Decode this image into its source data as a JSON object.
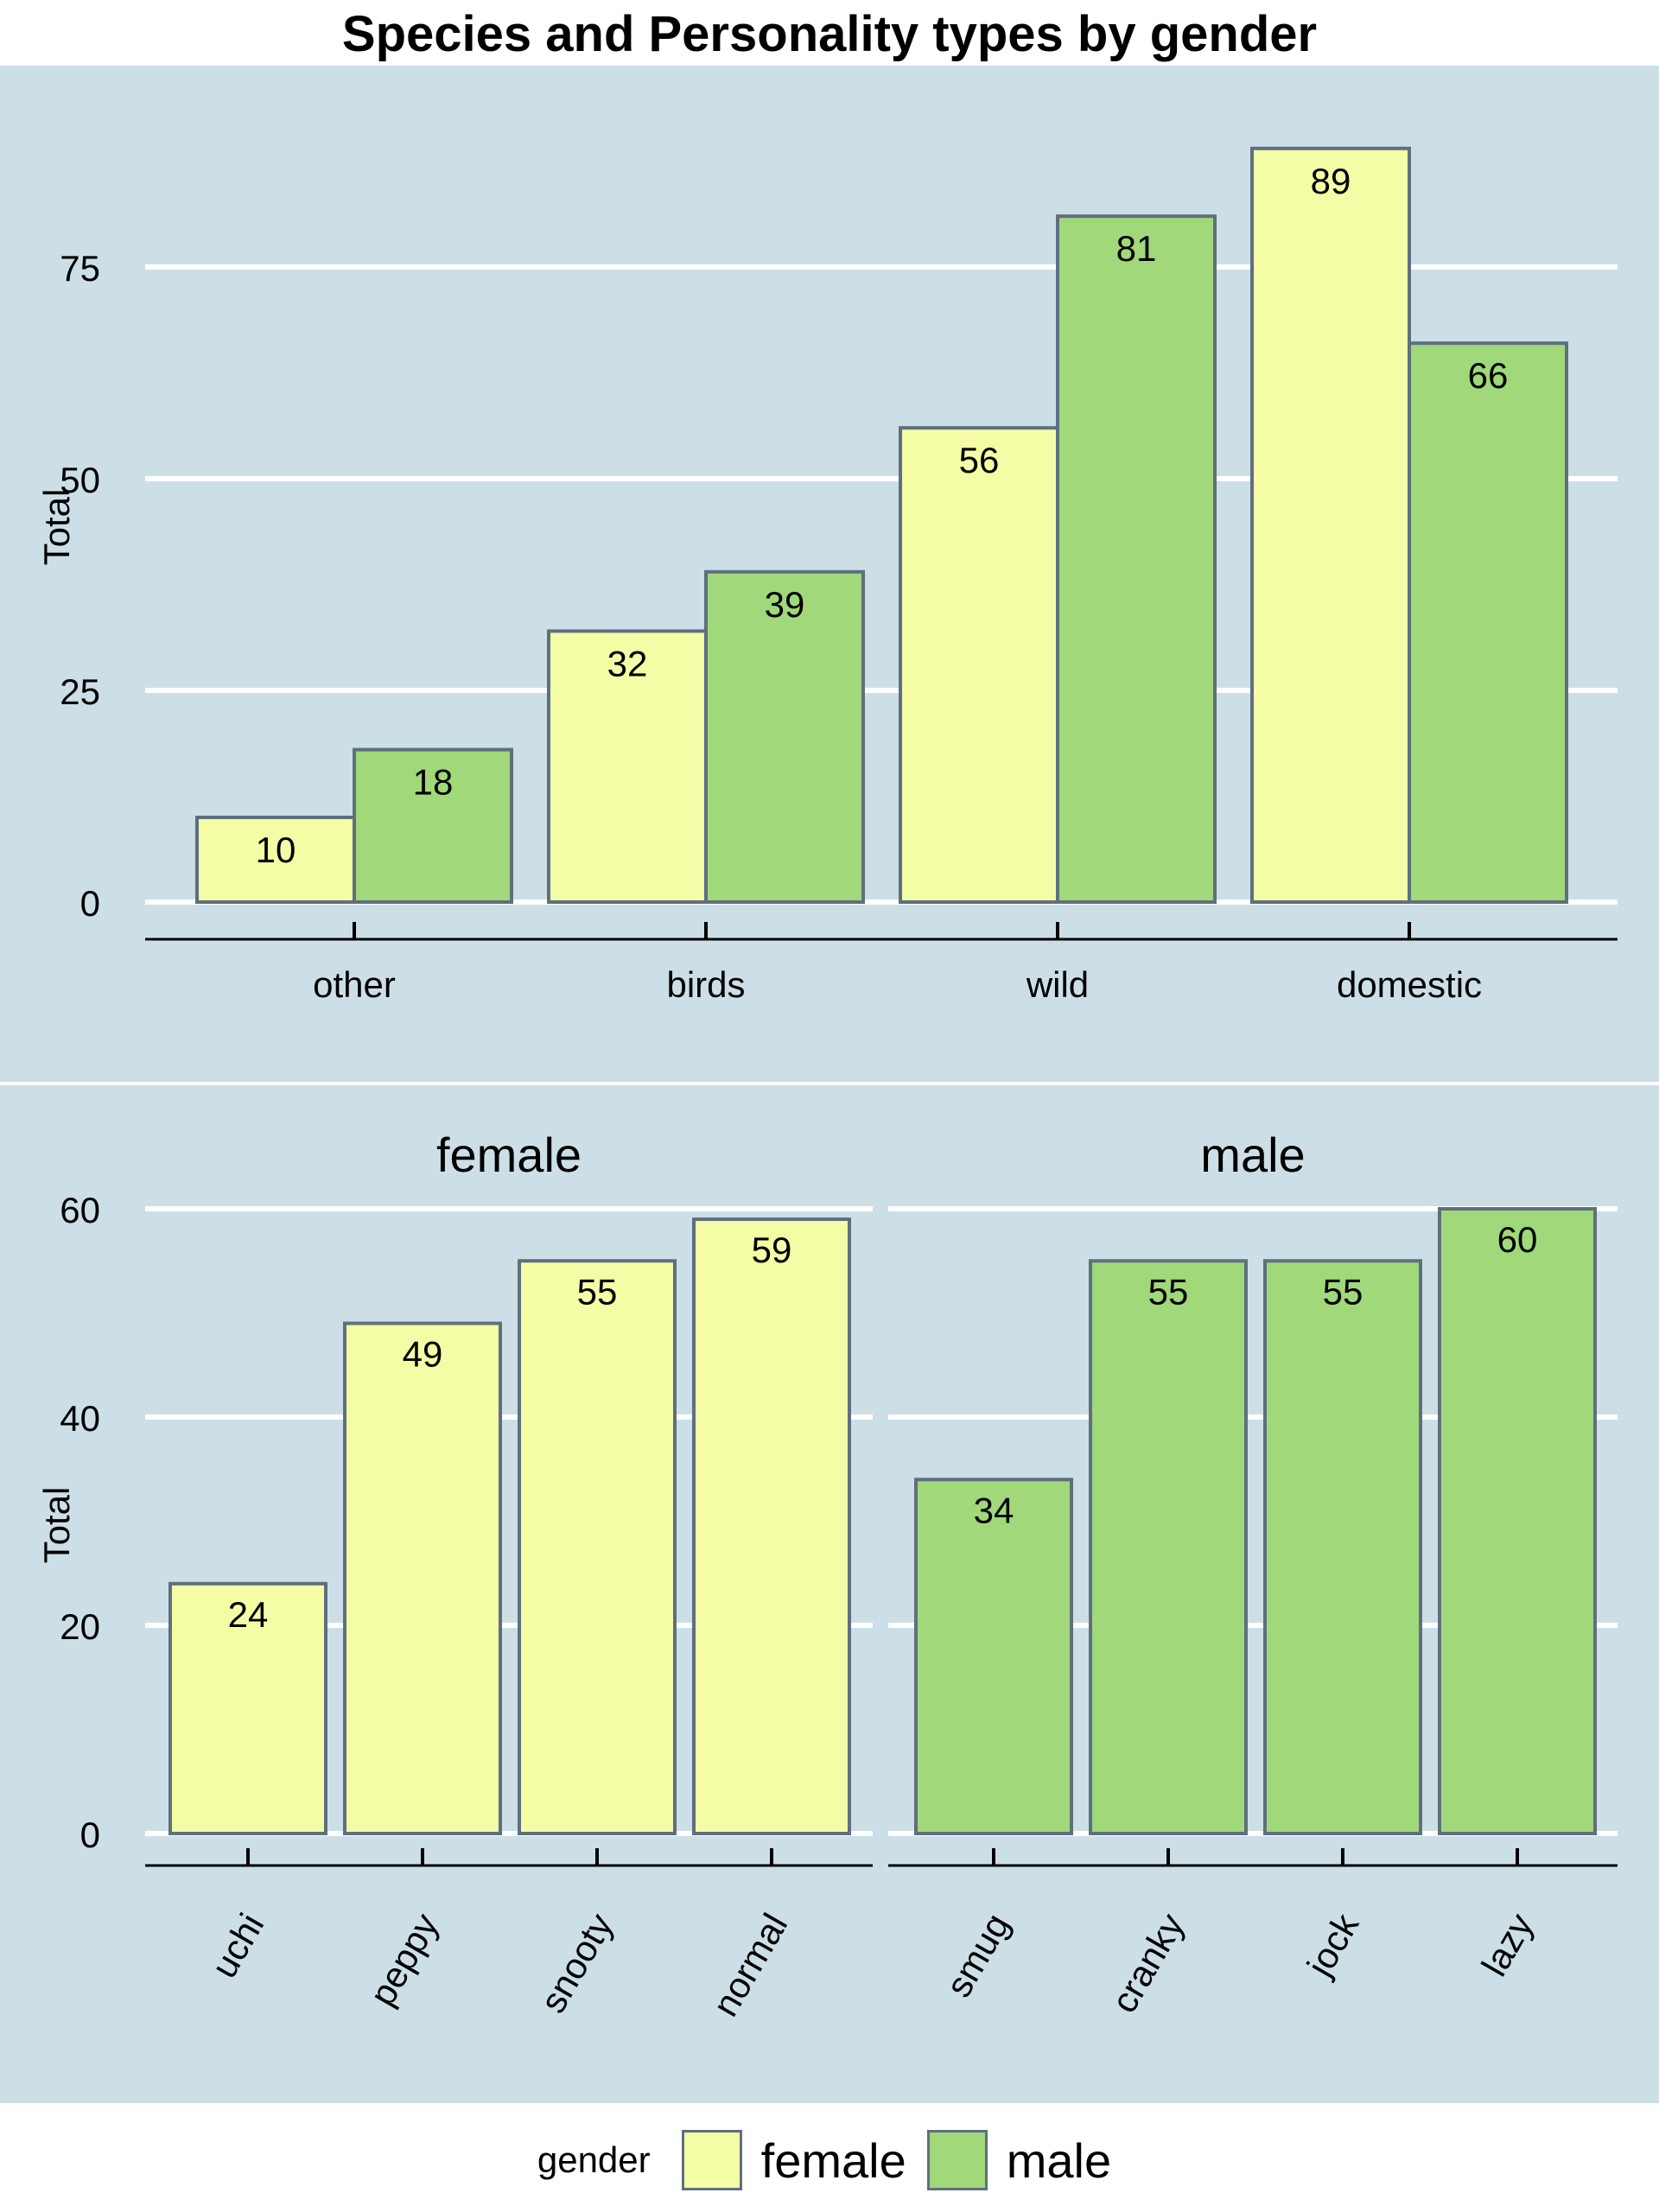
{
  "title": "Species and Personality types by gender",
  "colors": {
    "female": "#f4fca6",
    "male": "#a0d87a",
    "panel_bg": "#cddfe6",
    "bar_stroke": "#5f6f7f",
    "grid": "#ffffff"
  },
  "chart_data": [
    {
      "type": "bar",
      "title": "Species and Personality types by gender",
      "xlabel": "",
      "ylabel": "Total",
      "categories": [
        "other",
        "birds",
        "wild",
        "domestic"
      ],
      "series": [
        {
          "name": "female",
          "values": [
            10,
            32,
            56,
            89
          ]
        },
        {
          "name": "male",
          "values": [
            18,
            39,
            81,
            66
          ]
        }
      ],
      "ylim": [
        0,
        93
      ],
      "yticks": [
        0,
        25,
        50,
        75
      ],
      "grid": true,
      "data_labels": true
    },
    {
      "type": "bar",
      "xlabel": "",
      "ylabel": "Total",
      "facets": [
        {
          "name": "female",
          "categories": [
            "uchi",
            "peppy",
            "snooty",
            "normal"
          ],
          "values": [
            24,
            49,
            55,
            59
          ]
        },
        {
          "name": "male",
          "categories": [
            "smug",
            "cranky",
            "jock",
            "lazy"
          ],
          "values": [
            34,
            55,
            55,
            60
          ]
        }
      ],
      "ylim": [
        0,
        63
      ],
      "yticks": [
        0,
        20,
        40,
        60
      ],
      "grid": true,
      "data_labels": true,
      "tick_label_rotation": -60
    }
  ],
  "legend": {
    "title": "gender",
    "items": [
      {
        "label": "female",
        "color": "#f4fca6"
      },
      {
        "label": "male",
        "color": "#a0d87a"
      }
    ],
    "position": "bottom"
  }
}
